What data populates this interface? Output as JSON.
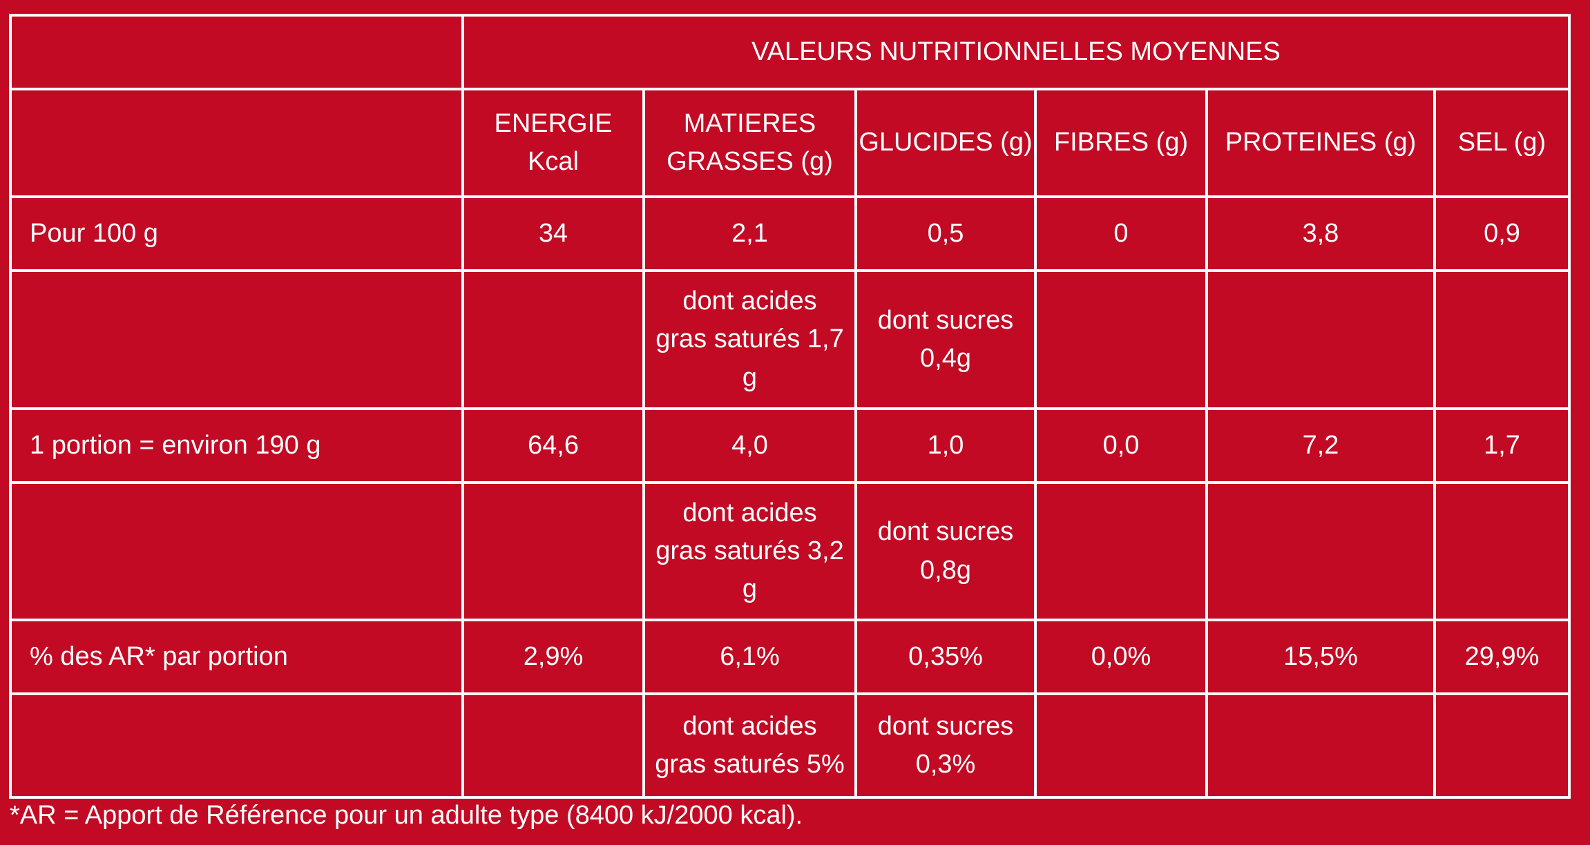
{
  "colors": {
    "background": "#C20A24",
    "border": "#FFFFFF",
    "text": "#FFFFFF"
  },
  "table": {
    "title": "VALEURS NUTRITIONNELLES MOYENNES",
    "columns": [
      "ENERGIE\nKcal",
      "MATIERES\nGRASSES (g)",
      "GLUCIDES (g)",
      "FIBRES (g)",
      "PROTEINES (g)",
      "SEL (g)"
    ],
    "rows": [
      {
        "label": "Pour 100 g",
        "values": [
          "34",
          "2,1",
          "0,5",
          "0",
          "3,8",
          "0,9"
        ]
      },
      {
        "label": "",
        "values": [
          "",
          "dont acides\ngras saturés 1,7\ng",
          "dont sucres\n0,4g",
          "",
          "",
          ""
        ]
      },
      {
        "label": "1 portion = environ 190 g",
        "values": [
          "64,6",
          "4,0",
          "1,0",
          "0,0",
          "7,2",
          "1,7"
        ]
      },
      {
        "label": "",
        "values": [
          "",
          "dont acides\ngras saturés 3,2\ng",
          "dont sucres\n0,8g",
          "",
          "",
          ""
        ]
      },
      {
        "label": "% des AR* par portion",
        "values": [
          "2,9%",
          "6,1%",
          "0,35%",
          "0,0%",
          "15,5%",
          "29,9%"
        ]
      },
      {
        "label": "",
        "values": [
          "",
          "dont acides\ngras saturés 5%",
          "dont sucres\n0,3%",
          "",
          "",
          ""
        ]
      }
    ],
    "footnote": "*AR = Apport de Référence pour un adulte type (8400 kJ/2000 kcal)."
  }
}
